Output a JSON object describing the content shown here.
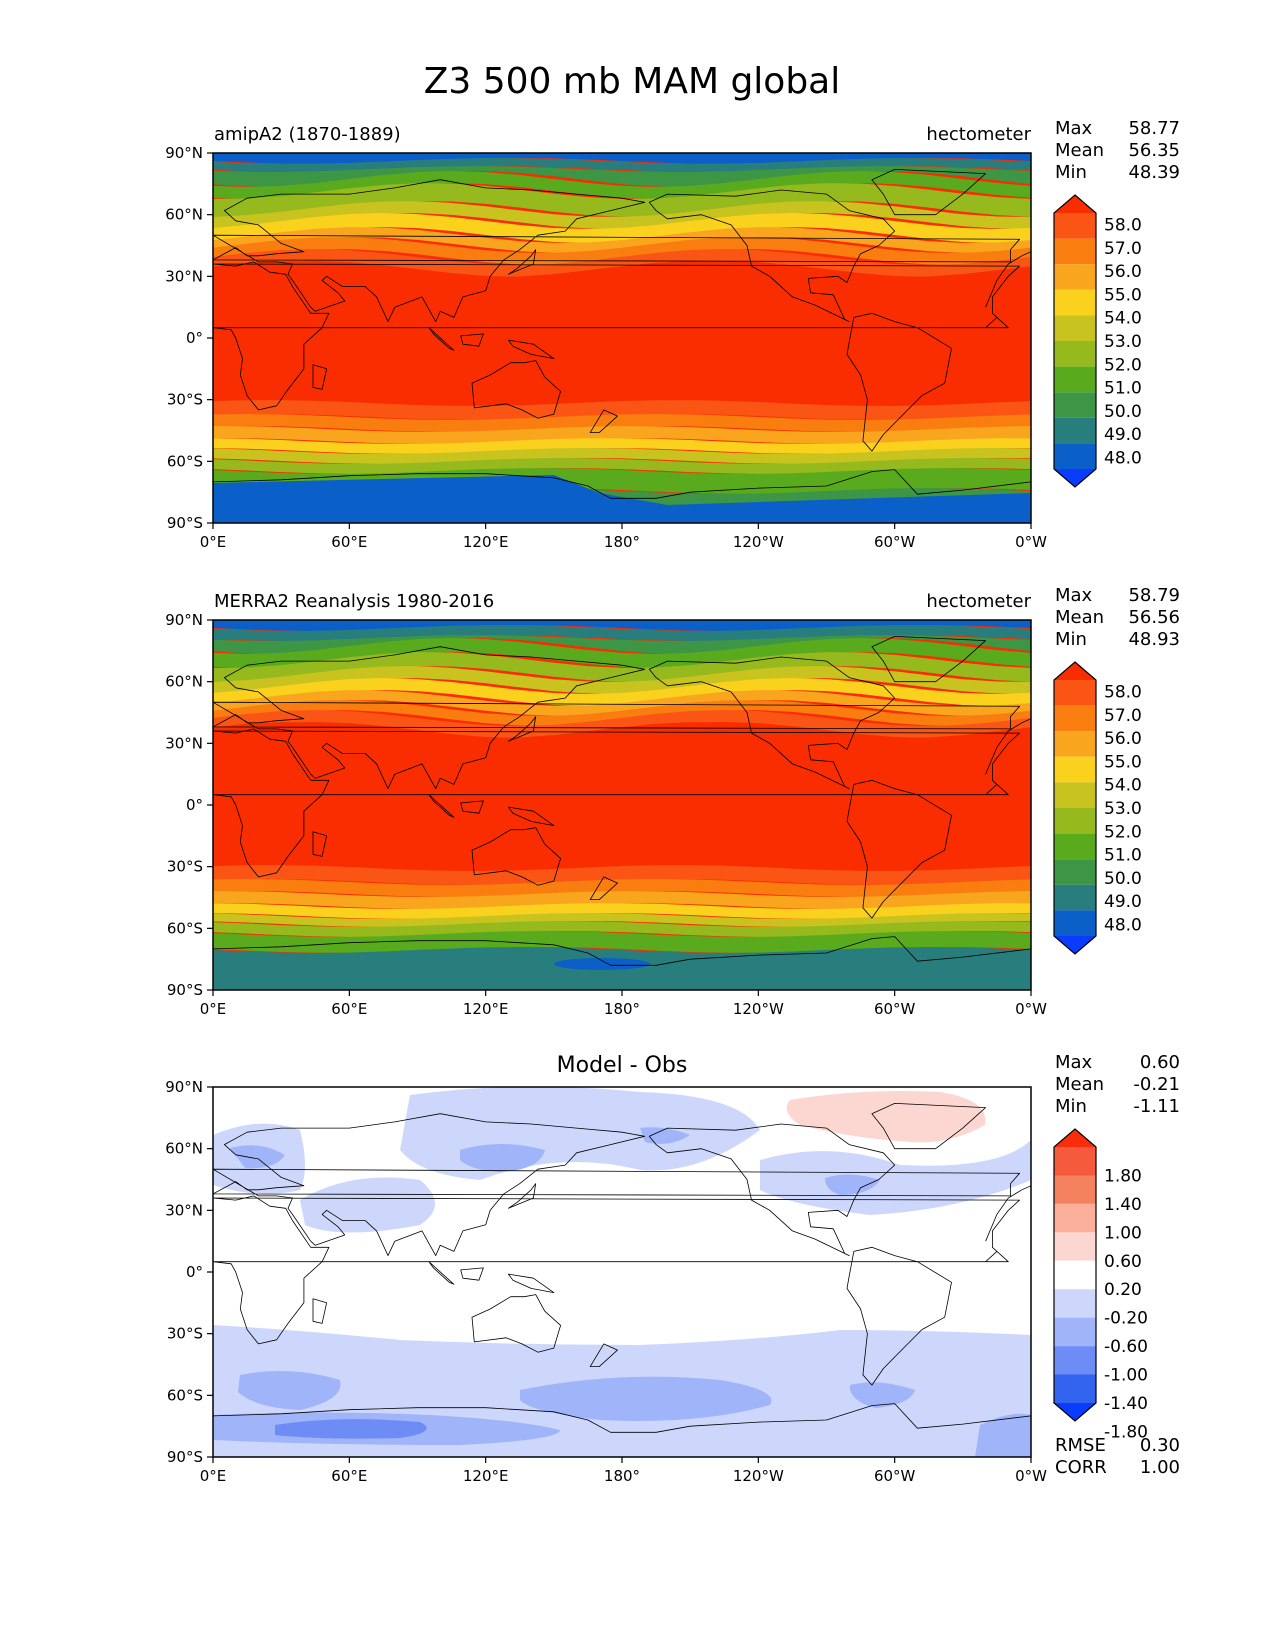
{
  "figure": {
    "title": "Z3 500 mb MAM global"
  },
  "axes": {
    "lat_ticks": [
      "90°N",
      "60°N",
      "30°N",
      "0°",
      "30°S",
      "60°S",
      "90°S"
    ],
    "lon_ticks": [
      "0°E",
      "60°E",
      "120°E",
      "180°",
      "120°W",
      "60°W",
      "0°W"
    ]
  },
  "colors": {
    "abs_levels": [
      "#0a3cff",
      "#0a5fc8",
      "#287d7d",
      "#3c9646",
      "#5aaa1e",
      "#96b91e",
      "#c8c31e",
      "#fad21e",
      "#faa51e",
      "#fa7d0f",
      "#fa5514",
      "#fa2d00"
    ],
    "diff_levels": [
      "#0a3cff",
      "#3264f0",
      "#6e8cf5",
      "#a0b4fa",
      "#cdd7fc",
      "#ffffff",
      "#fcd7d2",
      "#faaf9b",
      "#f5825f",
      "#f55a3c",
      "#fa2d0a"
    ],
    "coast": "#000000"
  },
  "panels": [
    {
      "id": "model",
      "left_title": "amipA2 (1870-1889)",
      "right_title": "hectometer",
      "center_title": "",
      "stats": [
        {
          "label": "Max",
          "value": "58.77"
        },
        {
          "label": "Mean",
          "value": "56.35"
        },
        {
          "label": "Min",
          "value": "48.39"
        }
      ],
      "colorbar_labels": [
        "58.0",
        "57.0",
        "56.0",
        "55.0",
        "54.0",
        "53.0",
        "52.0",
        "51.0",
        "50.0",
        "49.0",
        "48.0"
      ],
      "extra_stats": []
    },
    {
      "id": "obs",
      "left_title": "MERRA2 Reanalysis 1980-2016",
      "right_title": "hectometer",
      "center_title": "",
      "stats": [
        {
          "label": "Max",
          "value": "58.79"
        },
        {
          "label": "Mean",
          "value": "56.56"
        },
        {
          "label": "Min",
          "value": "48.93"
        }
      ],
      "colorbar_labels": [
        "58.0",
        "57.0",
        "56.0",
        "55.0",
        "54.0",
        "53.0",
        "52.0",
        "51.0",
        "50.0",
        "49.0",
        "48.0"
      ],
      "extra_stats": []
    },
    {
      "id": "diff",
      "left_title": "",
      "right_title": "",
      "center_title": "Model - Obs",
      "stats": [
        {
          "label": "Max",
          "value": "0.60"
        },
        {
          "label": "Mean",
          "value": "-0.21"
        },
        {
          "label": "Min",
          "value": "-1.11"
        }
      ],
      "colorbar_labels": [
        "1.80",
        "1.40",
        "1.00",
        "0.60",
        "0.20",
        "-0.20",
        "-0.60",
        "-1.00",
        "-1.40",
        "-1.80"
      ],
      "extra_stats": [
        {
          "label": "RMSE",
          "value": "0.30"
        },
        {
          "label": "CORR",
          "value": "1.00"
        }
      ]
    }
  ]
}
